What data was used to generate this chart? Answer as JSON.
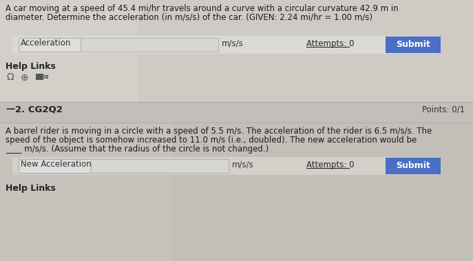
{
  "bg_color_top": "#d2cfc9",
  "bg_color_bottom": "#c5c2bc",
  "title1_line1": "A car moving at a speed of 45.4 mi/hr travels around a curve with a circular curvature 42.9 m in",
  "title1_line2": "diameter. Determine the acceleration (in m/s/s) of the car. (GIVEN: 2.24 mi/hr = 1.00 m/s)",
  "label1": "Acceleration",
  "unit1": "m/s/s",
  "attempts1": "Attempts: 0",
  "submit_color": "#4a6fc4",
  "submit_text": "Submit",
  "help_links": "Help Links",
  "dash": "—",
  "section_num": "2. CG2Q2",
  "points": "Points: 0/1",
  "title2_line1": "A barrel rider is moving in a circle with a speed of 5.5 m/s. The acceleration of the rider is 6.5 m/s/s. The",
  "title2_line2": "speed of the object is somehow increased to 11.0 m/s (i.e., doubled). The new acceleration would be",
  "title2_line3": "____ m/s/s. (Assume that the radius of the circle is not changed.)",
  "label2": "New Acceleration",
  "unit2": "m/s/s",
  "attempts2": "Attempts: 0",
  "help_links2": "Help Links",
  "font_size_title": 8.5,
  "font_size_label": 8.5,
  "font_size_section": 9.5,
  "input_box1_color": "#e8e8e8",
  "input_field_color": "#d8d6d0",
  "label_box_color": "#e0dedd",
  "section_bar_color": "#c8c5bf",
  "divider_color": "#b0aeaa",
  "text_color": "#1a1a1a",
  "attempt_color": "#2a2a2a",
  "help_color": "#222222"
}
